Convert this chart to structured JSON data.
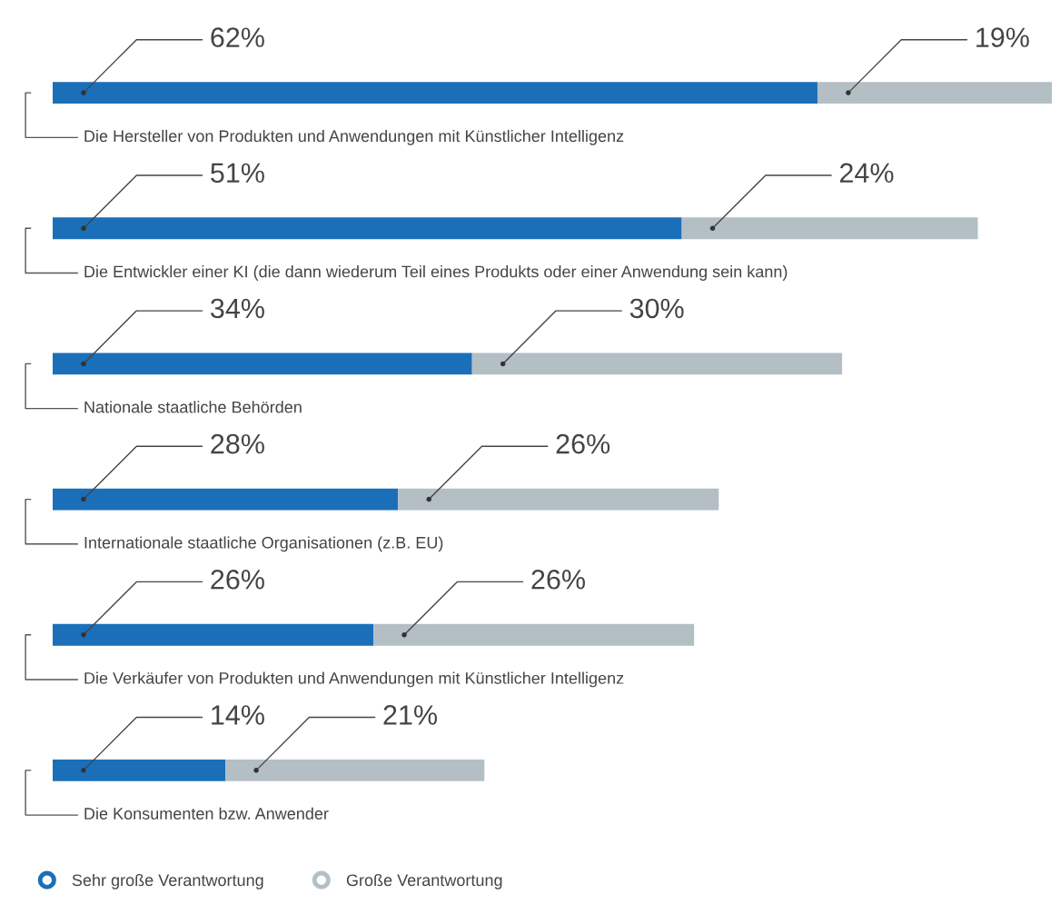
{
  "chart_data": {
    "type": "bar",
    "orientation": "horizontal",
    "stacked": true,
    "categories": [
      "Die Hersteller von Produkten und Anwendungen mit Künstlicher Intelligenz",
      "Die Entwickler einer KI (die dann wiederum Teil eines Produkts oder einer Anwendung sein kann)",
      "Nationale staatliche Behörden",
      "Internationale staatliche Organisationen (z.B. EU)",
      "Die Verkäufer von Produkten und Anwendungen mit Künstlicher Intelligenz",
      "Die Konsumenten bzw. Anwender"
    ],
    "series": [
      {
        "name": "Sehr große Verantwortung",
        "color": "#1a6fb8",
        "values": [
          62,
          51,
          34,
          28,
          26,
          14
        ],
        "value_labels": [
          "62%",
          "51%",
          "34%",
          "28%",
          "26%",
          "14%"
        ]
      },
      {
        "name": "Große Verantwortung",
        "color": "#b4bec5",
        "values": [
          19,
          24,
          30,
          26,
          26,
          21
        ],
        "value_labels": [
          "19%",
          "24%",
          "30%",
          "26%",
          "26%",
          "21%"
        ]
      }
    ],
    "legend": "bottom left"
  }
}
